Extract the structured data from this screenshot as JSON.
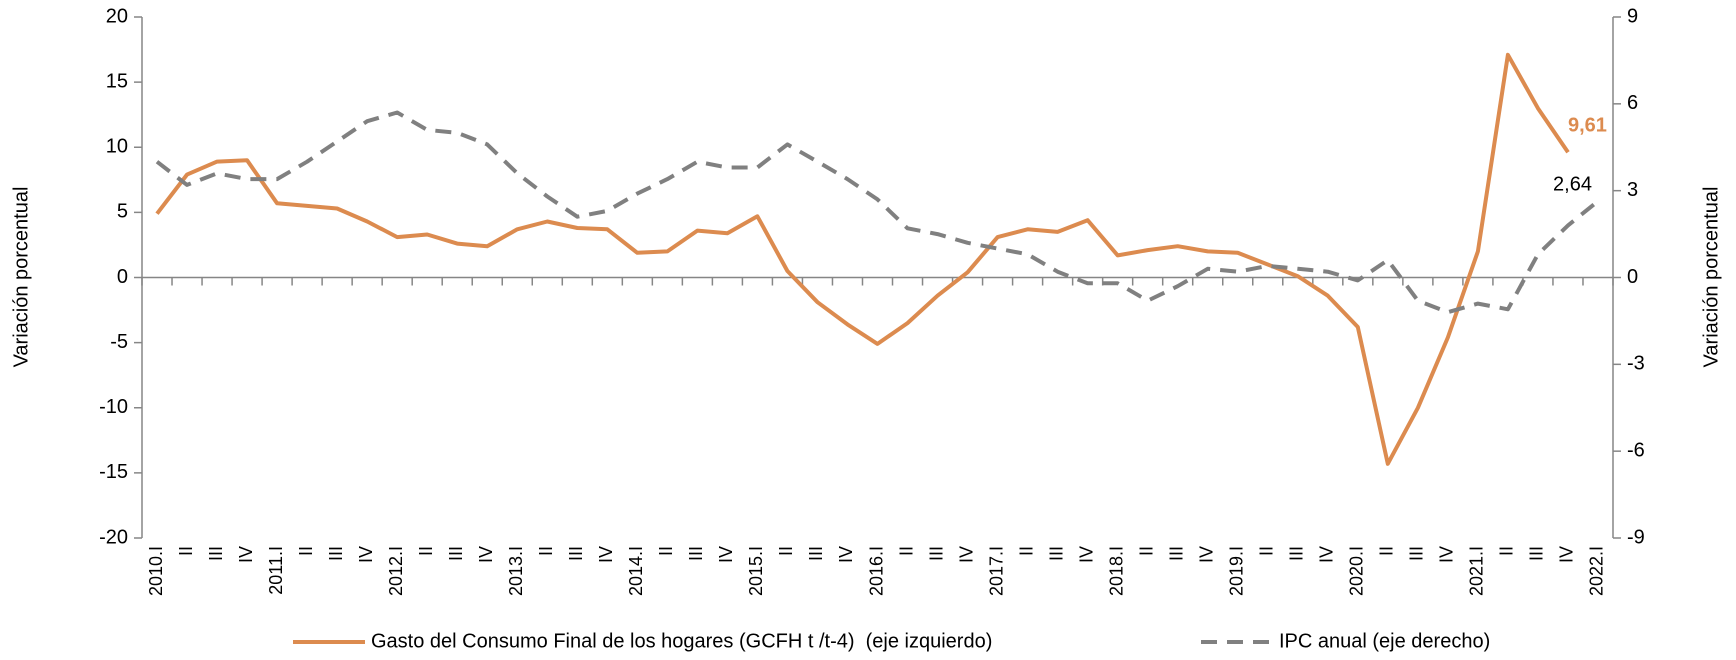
{
  "chart_data": {
    "type": "line",
    "y_label": "Variación porcentual",
    "y2_label": "Variación porcentual",
    "categories": [
      "2010.I",
      "II",
      "III",
      "IV",
      "2011.I",
      "II",
      "III",
      "IV",
      "2012.I",
      "II",
      "III",
      "IV",
      "2013.I",
      "II",
      "III",
      "IV",
      "2014.I",
      "II",
      "III",
      "IV",
      "2015.I",
      "II",
      "III",
      "IV",
      "2016.I",
      "II",
      "III",
      "IV",
      "2017.I",
      "II",
      "III",
      "IV",
      "2018.I",
      "II",
      "III",
      "IV",
      "2019.I",
      "II",
      "III",
      "IV",
      "2020.I",
      "II",
      "III",
      "IV",
      "2021.I",
      "II",
      "III",
      "IV",
      "2022.I"
    ],
    "series": [
      {
        "name": "Gasto del Consumo Final de los hogares (GCFH t /t-4)  (eje izquierdo)",
        "color": "#dc8b4f",
        "axis": "y",
        "line_style": "solid",
        "values": [
          4.9,
          7.9,
          8.9,
          9.0,
          5.7,
          5.5,
          5.3,
          4.3,
          3.1,
          3.3,
          2.6,
          2.4,
          3.7,
          4.3,
          3.8,
          3.7,
          1.9,
          2.0,
          3.6,
          3.4,
          4.7,
          0.5,
          -1.9,
          -3.6,
          -5.1,
          -3.5,
          -1.4,
          0.4,
          3.1,
          3.7,
          3.5,
          4.4,
          1.7,
          2.1,
          2.4,
          2.0,
          1.9,
          1.0,
          0.1,
          -1.4,
          -3.8,
          -14.3,
          -10.0,
          -4.6,
          2.0,
          17.1,
          13.0,
          9.61,
          null
        ],
        "value_labels": [
          null,
          null,
          null,
          null,
          null,
          null,
          null,
          null,
          null,
          null,
          null,
          null,
          null,
          null,
          null,
          null,
          null,
          null,
          null,
          null,
          null,
          null,
          null,
          null,
          null,
          null,
          null,
          null,
          null,
          null,
          null,
          null,
          null,
          null,
          null,
          null,
          null,
          null,
          null,
          null,
          null,
          null,
          null,
          null,
          null,
          null,
          null,
          "9,61",
          null
        ],
        "label_color": "#dc8b4f"
      },
      {
        "name": "IPC anual (eje derecho)",
        "color": "#808080",
        "axis": "y2",
        "line_style": "dashed",
        "values": [
          4.0,
          3.2,
          3.6,
          3.4,
          3.4,
          4.0,
          4.7,
          5.4,
          5.7,
          5.1,
          5.0,
          4.6,
          3.6,
          2.8,
          2.1,
          2.3,
          2.9,
          3.4,
          4.0,
          3.8,
          3.8,
          4.6,
          4.0,
          3.4,
          2.7,
          1.7,
          1.5,
          1.2,
          1.0,
          0.8,
          0.2,
          -0.2,
          -0.2,
          -0.8,
          -0.3,
          0.3,
          0.2,
          0.4,
          0.3,
          0.2,
          -0.1,
          0.6,
          -0.8,
          -1.2,
          -0.9,
          -1.1,
          0.8,
          1.8,
          2.64
        ],
        "value_labels": [
          null,
          null,
          null,
          null,
          null,
          null,
          null,
          null,
          null,
          null,
          null,
          null,
          null,
          null,
          null,
          null,
          null,
          null,
          null,
          null,
          null,
          null,
          null,
          null,
          null,
          null,
          null,
          null,
          null,
          null,
          null,
          null,
          null,
          null,
          null,
          null,
          null,
          null,
          null,
          null,
          null,
          null,
          null,
          null,
          null,
          null,
          null,
          null,
          "2,64"
        ],
        "label_color": "#000000"
      }
    ],
    "ylim": [
      -20,
      20
    ],
    "yticks": [
      -20,
      -15,
      -10,
      -5,
      0,
      5,
      10,
      15,
      20
    ],
    "y2lim": [
      -9,
      9
    ],
    "y2ticks": [
      -9,
      -6,
      -3,
      0,
      3,
      6,
      9
    ],
    "grid": false
  }
}
